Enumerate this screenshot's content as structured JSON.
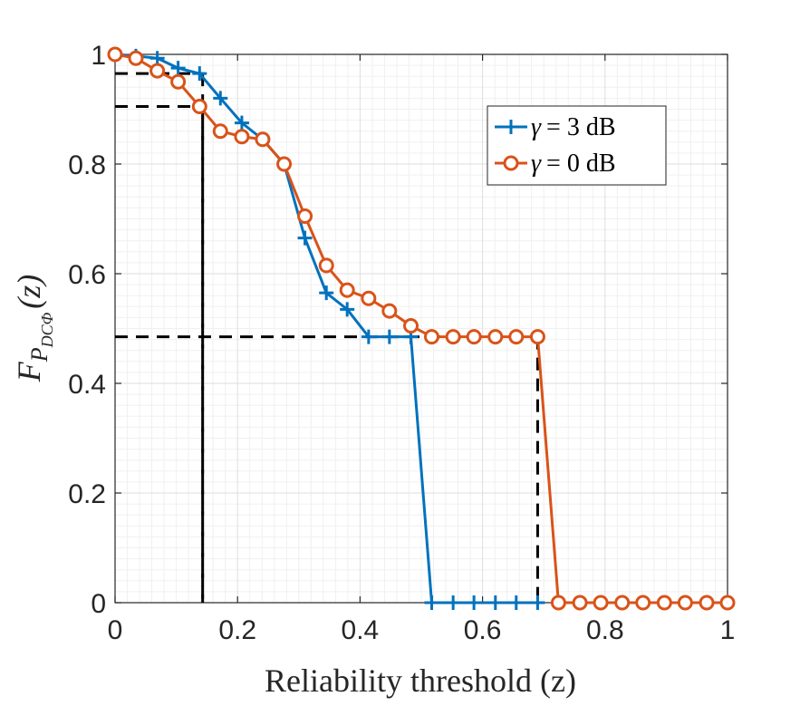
{
  "chart_data": {
    "type": "line",
    "xlabel": "Reliability threshold (z)",
    "ylabel": "F_{P_{DCΦ}}(z)",
    "ylabel_main": "F",
    "ylabel_sub": "P",
    "ylabel_subsub": "DCΦ",
    "ylabel_arg": "(z)",
    "xlim": [
      0,
      1
    ],
    "ylim": [
      0,
      1
    ],
    "xticks": [
      0,
      0.2,
      0.4,
      0.6,
      0.8,
      1
    ],
    "xtick_labels": [
      "0",
      "0.2",
      "0.4",
      "0.6",
      "0.8",
      "1"
    ],
    "yticks": [
      0,
      0.2,
      0.4,
      0.6,
      0.8,
      1
    ],
    "ytick_labels": [
      "0",
      "0.2",
      "0.4",
      "0.6",
      "0.8",
      "1"
    ],
    "grid": true,
    "legend_position": "top-right",
    "series": [
      {
        "name": "γ = 3 dB",
        "legend_symbol": "γ",
        "legend_value": "= 3 dB",
        "color": "#0072BD",
        "marker": "plus",
        "x": [
          0,
          0.034,
          0.069,
          0.103,
          0.138,
          0.172,
          0.207,
          0.241,
          0.276,
          0.31,
          0.345,
          0.379,
          0.414,
          0.448,
          0.483,
          0.517,
          0.552,
          0.586,
          0.621,
          0.655,
          0.69
        ],
        "y": [
          1.0,
          0.997,
          0.993,
          0.975,
          0.965,
          0.92,
          0.875,
          0.845,
          0.8,
          0.665,
          0.565,
          0.535,
          0.485,
          0.485,
          0.485,
          0.0,
          0.0,
          0.0,
          0.0,
          0.0,
          0.0
        ]
      },
      {
        "name": "γ = 0 dB",
        "legend_symbol": "γ",
        "legend_value": "= 0 dB",
        "color": "#D95319",
        "marker": "circle",
        "x": [
          0,
          0.034,
          0.069,
          0.103,
          0.138,
          0.172,
          0.207,
          0.241,
          0.276,
          0.31,
          0.345,
          0.379,
          0.414,
          0.448,
          0.483,
          0.517,
          0.552,
          0.586,
          0.621,
          0.655,
          0.69,
          0.724,
          0.759,
          0.793,
          0.828,
          0.862,
          0.897,
          0.931,
          0.966,
          1.0
        ],
        "y": [
          1.0,
          0.993,
          0.97,
          0.95,
          0.905,
          0.86,
          0.85,
          0.845,
          0.8,
          0.705,
          0.615,
          0.57,
          0.555,
          0.532,
          0.505,
          0.485,
          0.485,
          0.485,
          0.485,
          0.485,
          0.485,
          0.0,
          0.0,
          0.0,
          0.0,
          0.0,
          0.0,
          0.0,
          0.0,
          0.0
        ]
      }
    ],
    "reference_lines": [
      {
        "x": 0.143,
        "y": 0.965
      },
      {
        "x": 0.143,
        "y": 0.905
      },
      {
        "x": 0.69,
        "y": 0.485
      }
    ]
  }
}
